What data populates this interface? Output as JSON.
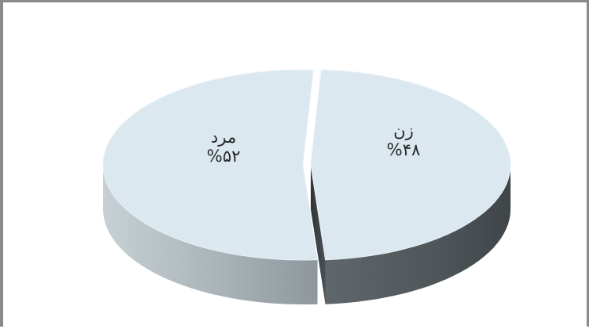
{
  "chart_data": {
    "type": "pie",
    "title": "",
    "slices": [
      {
        "label": "زن",
        "value": 48,
        "value_text": "%۴۸",
        "top_color": "#dbe8f0",
        "side_color": "#5a6166"
      },
      {
        "label": "مرد",
        "value": 52,
        "value_text": "%۵۲",
        "top_color": "#dbe8f0",
        "side_color": "#9ea7ac"
      }
    ],
    "exploded": true,
    "three_d": true
  }
}
